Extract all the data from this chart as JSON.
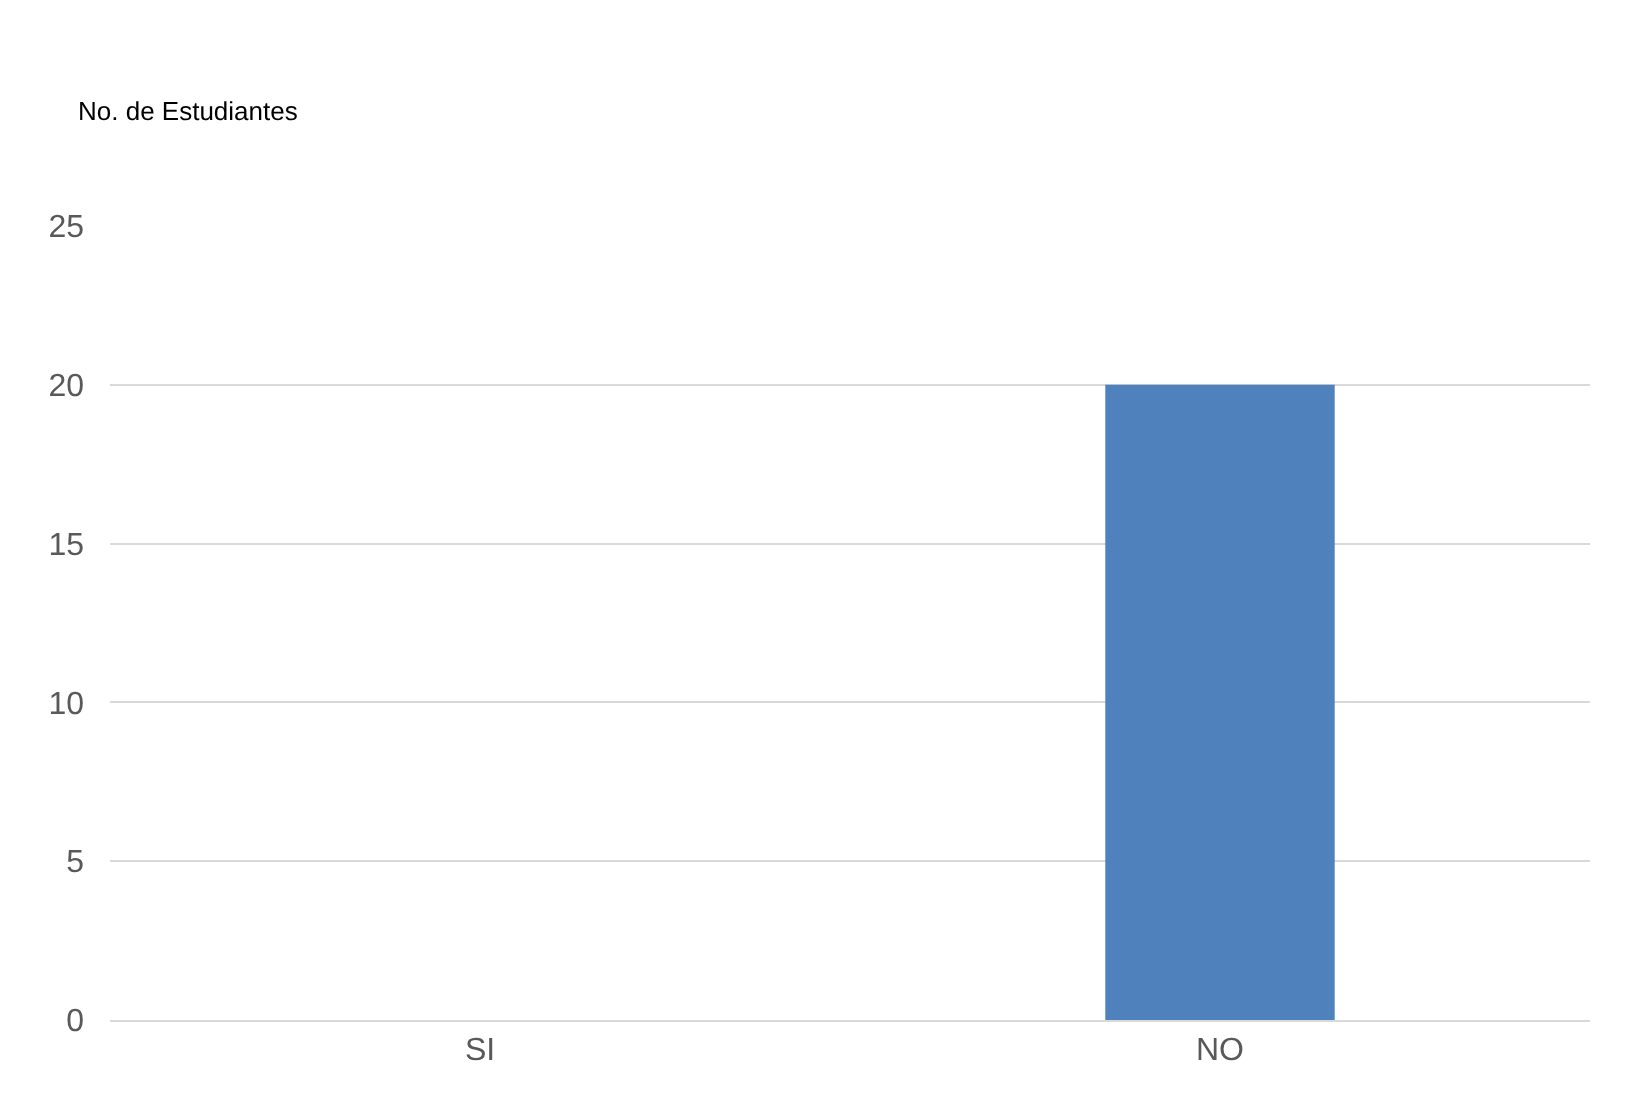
{
  "chart_data": {
    "type": "bar",
    "ylabel": "No. de Estudiantes",
    "categories": [
      "SI",
      "NO"
    ],
    "values": [
      0,
      20
    ],
    "color": "#4f81bd",
    "ylim": [
      0,
      25
    ],
    "yticks": [
      0,
      5,
      10,
      15,
      20,
      25
    ],
    "grid": "y",
    "legend": false
  }
}
